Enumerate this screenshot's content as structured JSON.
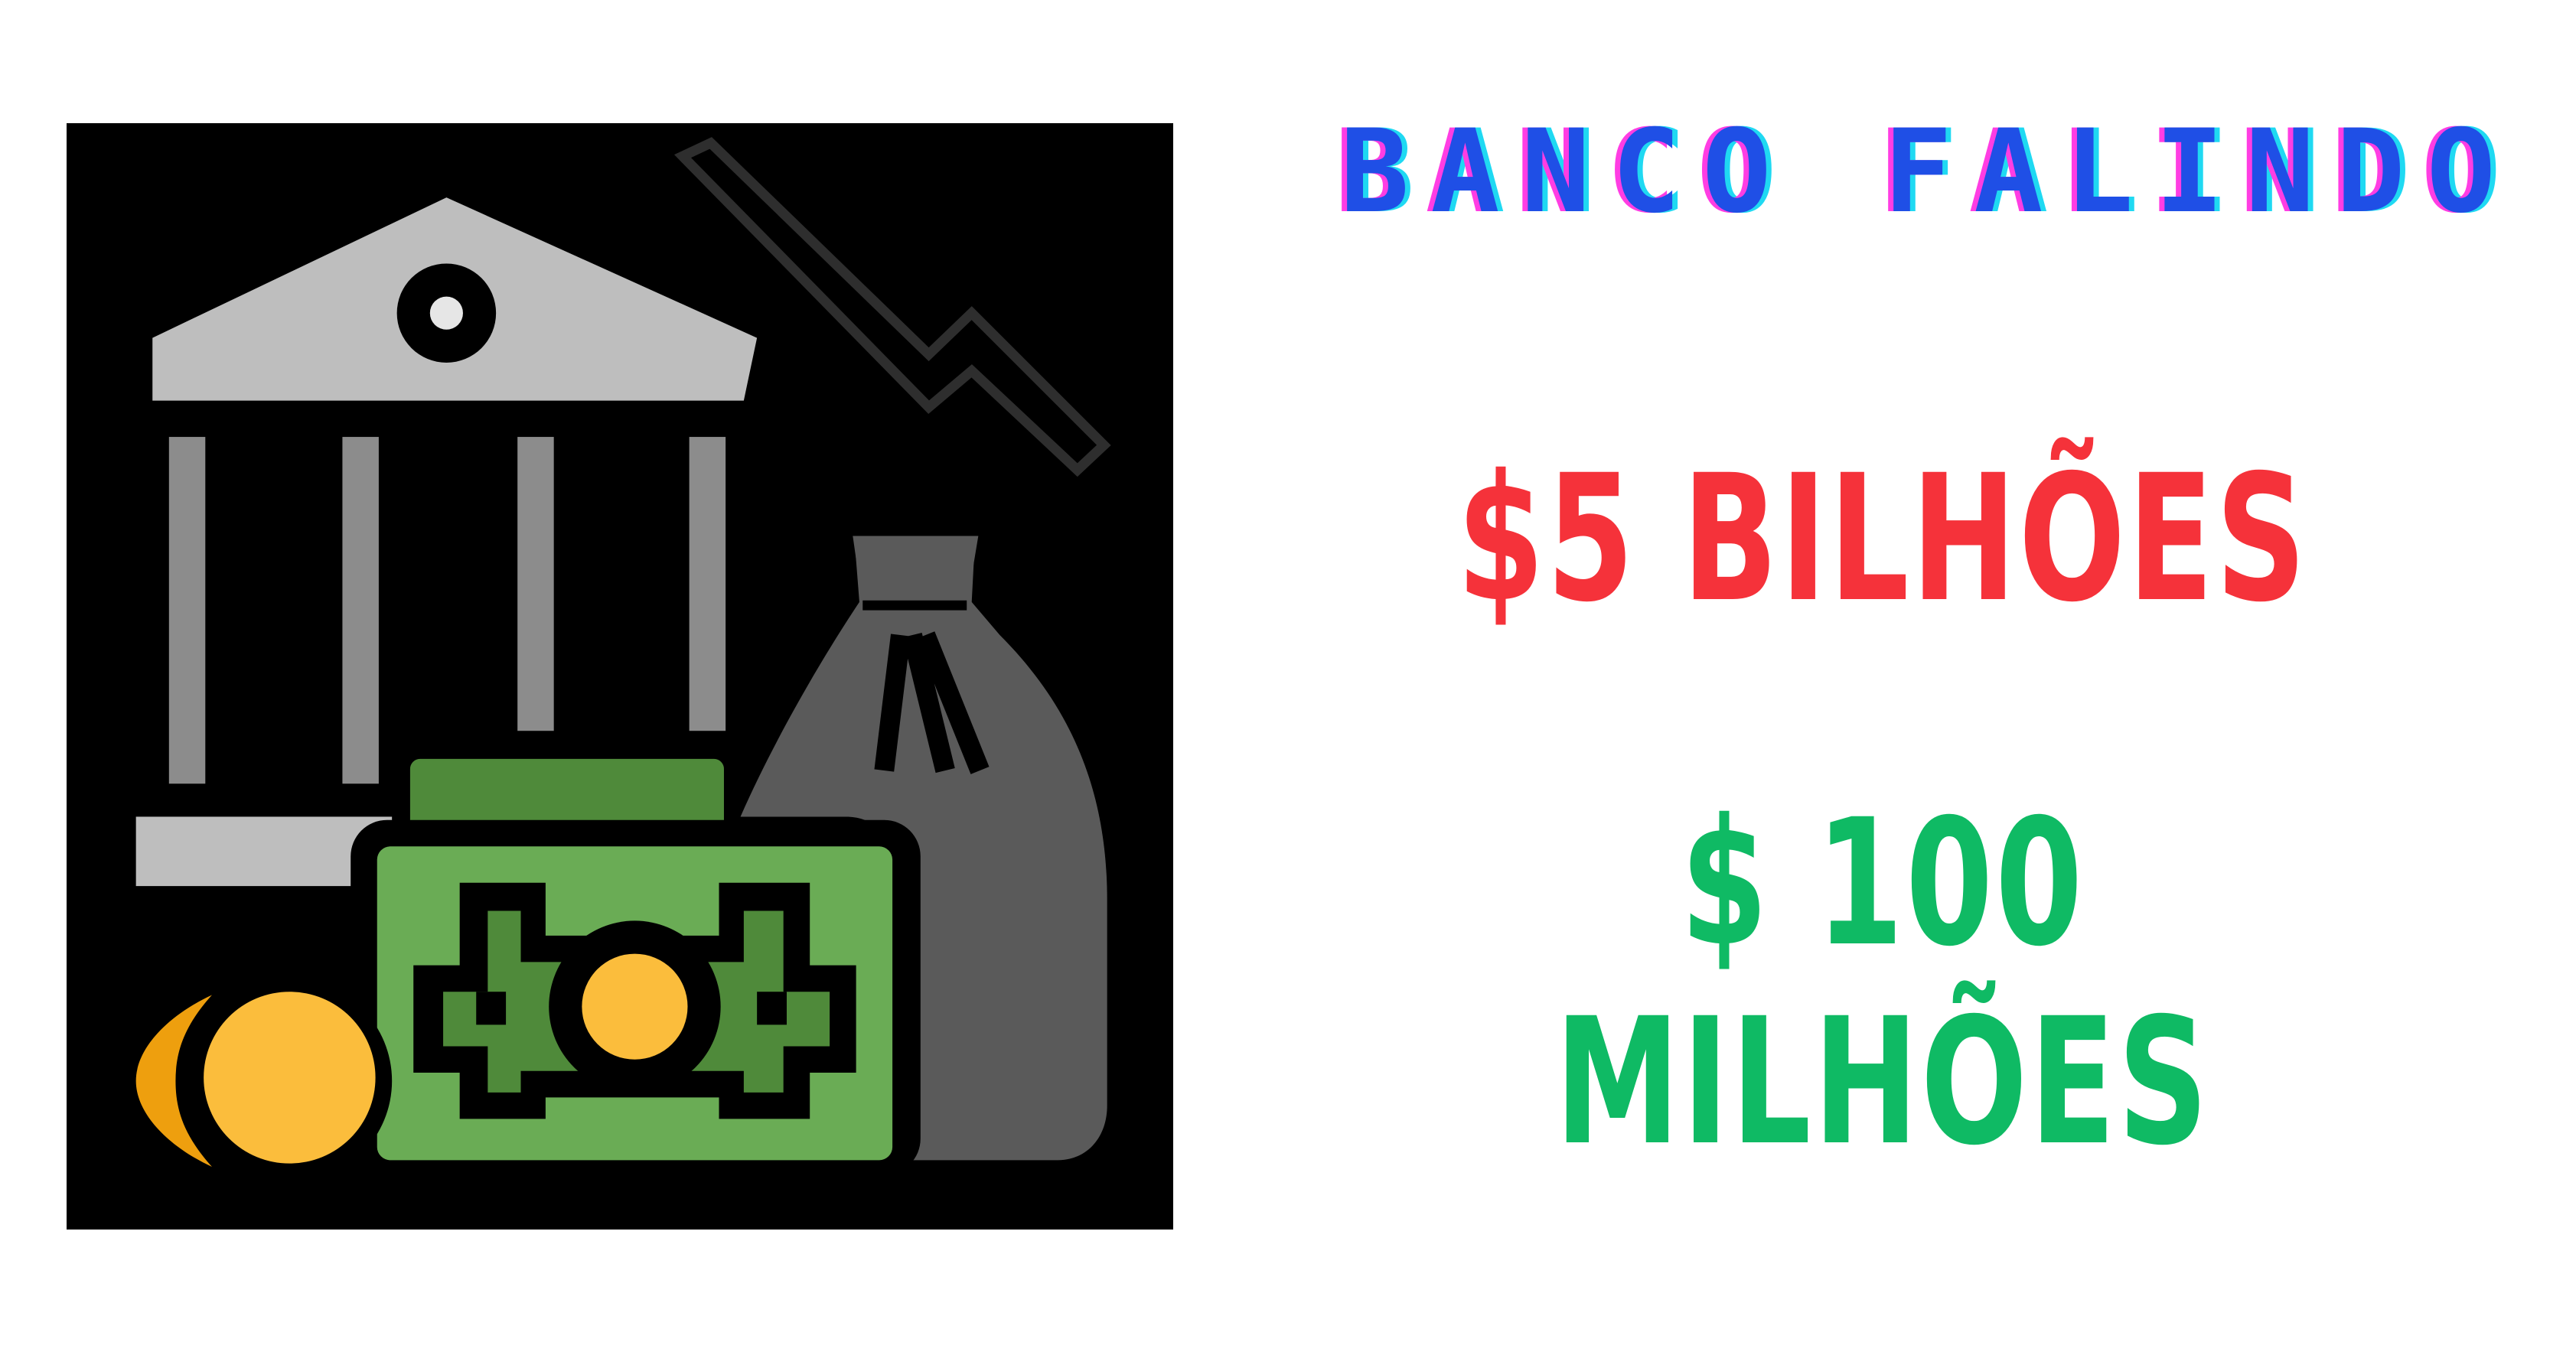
{
  "title": "BANCO FALINDO",
  "amounts": {
    "billions": "$5 BILHÕES",
    "millions_line1": "$ 100",
    "millions_line2": "MILHÕES"
  },
  "icon": {
    "name": "failing-bank-money-icon",
    "parts": [
      "bank-building-icon",
      "downtrend-arrow-icon",
      "money-bag-icon",
      "banknote-icon",
      "coin-icon"
    ]
  },
  "colors": {
    "title_fill": "#1f4fe6",
    "title_shadow_pink": "#ff3de3",
    "title_shadow_cyan": "#1fd9f2",
    "billions": "#f5323a",
    "millions": "#0fba64",
    "illustration_background": "#000000"
  }
}
